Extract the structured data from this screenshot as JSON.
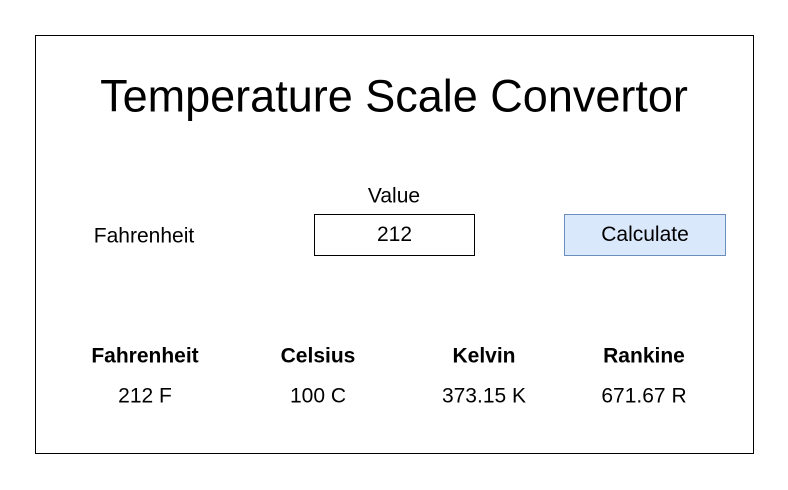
{
  "app": {
    "title": "Temperature Scale Convertor"
  },
  "input": {
    "value_label": "Value",
    "scale_label": "Fahrenheit",
    "value": "212"
  },
  "actions": {
    "calculate_label": "Calculate"
  },
  "results": [
    {
      "scale": "Fahrenheit",
      "value": "212 F"
    },
    {
      "scale": "Celsius",
      "value": "100 C"
    },
    {
      "scale": "Kelvin",
      "value": "373.15 K"
    },
    {
      "scale": "Rankine",
      "value": "671.67 R"
    }
  ],
  "colors": {
    "button_fill": "#dae8fc",
    "button_border": "#6c8ebf",
    "frame_border": "#000000"
  }
}
